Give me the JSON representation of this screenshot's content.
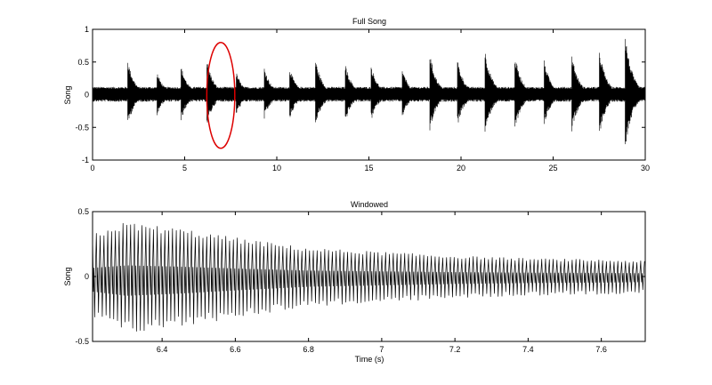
{
  "chart_data": [
    {
      "type": "line",
      "title": "Full Song",
      "xlabel": "",
      "ylabel": "Song",
      "xlim": [
        0,
        30
      ],
      "ylim": [
        -1,
        1
      ],
      "xticks": [
        0,
        5,
        10,
        15,
        20,
        25,
        30
      ],
      "yticks": [
        -1,
        -0.5,
        0,
        0.5,
        1
      ],
      "xtick_labels": [
        "0",
        "5",
        "10",
        "15",
        "20",
        "25",
        "30"
      ],
      "ytick_labels": [
        "-1",
        "-0.5",
        "0",
        "0.5",
        "1"
      ],
      "grid": false,
      "line_color": "#000000",
      "signal": {
        "baseline_amplitude": 0.12,
        "onsets": [
          1.9,
          3.5,
          4.8,
          6.2,
          7.8,
          9.3,
          10.7,
          12.1,
          13.7,
          15.1,
          16.8,
          18.3,
          19.8,
          21.3,
          22.9,
          24.5,
          26.0,
          27.5,
          28.9
        ],
        "peaks": [
          0.55,
          0.35,
          0.45,
          0.55,
          0.35,
          0.45,
          0.42,
          0.55,
          0.5,
          0.48,
          0.4,
          0.65,
          0.55,
          0.7,
          0.65,
          0.55,
          0.65,
          0.72,
          0.97
        ]
      },
      "annotation": {
        "shape": "ellipse",
        "color": "#dd0000",
        "x_range": [
          6.2,
          7.72
        ],
        "y_range": [
          -0.82,
          0.8
        ]
      }
    },
    {
      "type": "line",
      "title": "Windowed",
      "xlabel": "Time (s)",
      "ylabel": "Song",
      "xlim": [
        6.21,
        7.72
      ],
      "ylim": [
        -0.5,
        0.5
      ],
      "xticks": [
        6.4,
        6.6,
        6.8,
        7.0,
        7.2,
        7.4,
        7.6
      ],
      "yticks": [
        -0.5,
        0,
        0.5
      ],
      "xtick_labels": [
        "6.4",
        "6.6",
        "6.8",
        "7",
        "7.2",
        "7.4",
        "7.6"
      ],
      "ytick_labels": [
        "-0.5",
        "0",
        "0.5"
      ],
      "grid": false,
      "line_color": "#000000",
      "signal": {
        "envelope": [
          [
            6.21,
            0.33
          ],
          [
            6.3,
            0.42
          ],
          [
            6.45,
            0.37
          ],
          [
            6.6,
            0.3
          ],
          [
            6.8,
            0.22
          ],
          [
            7.0,
            0.19
          ],
          [
            7.2,
            0.16
          ],
          [
            7.4,
            0.14
          ],
          [
            7.6,
            0.13
          ],
          [
            7.72,
            0.12
          ]
        ],
        "cycle_period": 0.0104
      }
    }
  ]
}
